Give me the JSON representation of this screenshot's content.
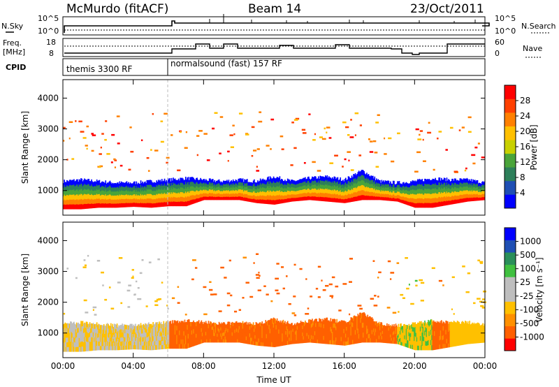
{
  "header": {
    "station": "McMurdo (fitACF)",
    "beam": "Beam 14",
    "date": "23/Oct/2011"
  },
  "top_panels": {
    "nsky_label": "N.Sky",
    "nsky_ticks": [
      "10^5",
      "10^0"
    ],
    "nsearch_label": "N.Search",
    "nsearch_ticks": [
      "10^5",
      "10^0"
    ],
    "freq_label": "Freq.",
    "freq_unit": "[MHz]",
    "freq_ticks": [
      "18",
      "8"
    ],
    "nave_label": "Nave",
    "nave_ticks": [
      "60",
      "0"
    ],
    "cpid_label": "CPID",
    "cpid_segments": [
      "themis 3300 RF",
      "normalsound (fast) 157 RF"
    ]
  },
  "colors": {
    "power_scale": [
      "#0000ff",
      "#1f4fb4",
      "#2d7f5a",
      "#4aa43a",
      "#c8d000",
      "#ffc000",
      "#ff8000",
      "#ff4000",
      "#ff0000"
    ],
    "velocity_scale": [
      "#ff0000",
      "#ff6000",
      "#ff9000",
      "#ffc000",
      "#bebebe",
      "#bebebe",
      "#40c040",
      "#2a8f5a",
      "#1f4fb4",
      "#0000ff"
    ],
    "gray_scatter": "#bebebe"
  },
  "chart_data": [
    {
      "type": "heatmap",
      "title": "",
      "xlabel": "",
      "ylabel": "Slant Range [km]",
      "x_ticks": [
        "00:00",
        "04:00",
        "08:00",
        "12:00",
        "16:00",
        "20:00",
        "00:00"
      ],
      "xlim_hours": [
        0,
        24
      ],
      "y_ticks": [
        "1000",
        "2000",
        "3000",
        "4000"
      ],
      "ylim_km": [
        200,
        4600
      ],
      "colorbar_label": "Power [dB]",
      "colorbar_ticks": [
        "4",
        "8",
        "12",
        "16",
        "20",
        "24",
        "28"
      ],
      "colorbar_range": [
        0,
        30
      ],
      "main_echo_band": {
        "hours": [
          0,
          1,
          2,
          3,
          4,
          5,
          6,
          7,
          8,
          9,
          10,
          11,
          12,
          13,
          14,
          15,
          16,
          17,
          18,
          19,
          20,
          21,
          22,
          23,
          24
        ],
        "lower_km": [
          400,
          400,
          450,
          450,
          480,
          450,
          500,
          500,
          700,
          700,
          700,
          600,
          550,
          650,
          700,
          650,
          600,
          700,
          700,
          650,
          450,
          450,
          550,
          650,
          700
        ],
        "upper_km": [
          1300,
          1350,
          1300,
          1250,
          1250,
          1300,
          1350,
          1400,
          1350,
          1300,
          1350,
          1300,
          1450,
          1300,
          1400,
          1450,
          1350,
          1650,
          1300,
          1250,
          1300,
          1400,
          1350,
          1350,
          1250
        ]
      }
    },
    {
      "type": "heatmap",
      "title": "",
      "xlabel": "Time UT",
      "ylabel": "Slant Range [km]",
      "x_ticks": [
        "00:00",
        "04:00",
        "08:00",
        "12:00",
        "16:00",
        "20:00",
        "00:00"
      ],
      "xlim_hours": [
        0,
        24
      ],
      "y_ticks": [
        "1000",
        "2000",
        "3000",
        "4000"
      ],
      "ylim_km": [
        200,
        4600
      ],
      "colorbar_label": "Velocity [m s⁻¹]",
      "colorbar_ticks": [
        "1000",
        "500",
        "100",
        "25",
        "-25",
        "-100",
        "-500",
        "-1000"
      ],
      "main_echo_band": {
        "hours": [
          0,
          1,
          2,
          3,
          4,
          5,
          6,
          7,
          8,
          9,
          10,
          11,
          12,
          13,
          14,
          15,
          16,
          17,
          18,
          19,
          20,
          21,
          22,
          23,
          24
        ],
        "lower_km": [
          400,
          400,
          450,
          450,
          480,
          450,
          500,
          500,
          700,
          700,
          700,
          600,
          550,
          650,
          700,
          650,
          600,
          700,
          700,
          650,
          450,
          450,
          550,
          650,
          700
        ],
        "upper_km": [
          1300,
          1350,
          1300,
          1250,
          1250,
          1300,
          1350,
          1400,
          1350,
          1300,
          1350,
          1300,
          1450,
          1300,
          1400,
          1450,
          1350,
          1650,
          1300,
          1250,
          1300,
          1400,
          1350,
          1350,
          1250
        ]
      }
    }
  ]
}
